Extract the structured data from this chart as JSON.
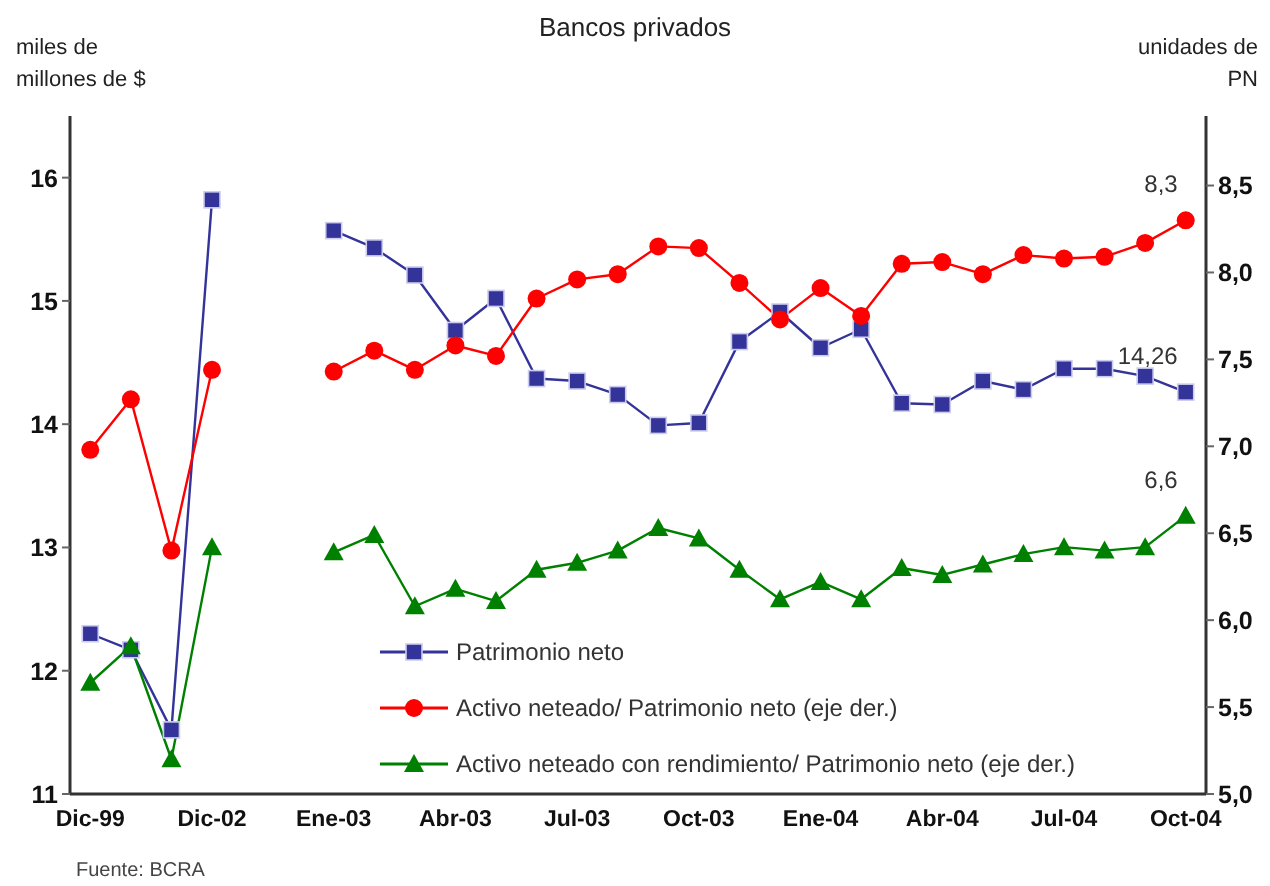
{
  "chart_data": {
    "type": "line",
    "title": "Bancos privados",
    "ylabel": "miles de millones de $",
    "y2label": "unidades de PN",
    "categories": [
      "Dic-99",
      null,
      null,
      "Dic-02",
      null,
      null,
      "Ene-03",
      null,
      null,
      "Abr-03",
      null,
      null,
      "Jul-03",
      null,
      null,
      "Oct-03",
      null,
      null,
      "Ene-04",
      null,
      null,
      "Abr-04",
      null,
      null,
      "Jul-04",
      null,
      null,
      "Oct-04"
    ],
    "series": [
      {
        "name": "Patrimonio neto",
        "color": "#333399",
        "marker": "square",
        "values": [
          12.3,
          12.17,
          11.52,
          15.82,
          null,
          null,
          15.57,
          15.43,
          15.21,
          14.76,
          15.02,
          14.37,
          14.35,
          14.24,
          13.99,
          14.01,
          14.67,
          14.91,
          14.62,
          14.77,
          14.17,
          14.16,
          14.35,
          14.28,
          14.45,
          14.45,
          14.39,
          14.26
        ],
        "value_labels": [
          null,
          null,
          null,
          null,
          null,
          null,
          null,
          null,
          null,
          null,
          null,
          null,
          null,
          null,
          null,
          null,
          null,
          null,
          null,
          null,
          null,
          null,
          null,
          null,
          null,
          null,
          null,
          "14,26"
        ]
      },
      {
        "name": "Activo neteado/ Patrimonio neto (eje der.)",
        "color": "#ff0000",
        "marker": "circle",
        "axis": "y2",
        "values": [
          6.98,
          7.27,
          6.4,
          7.44,
          null,
          null,
          7.43,
          7.55,
          7.44,
          7.58,
          7.52,
          7.85,
          7.96,
          7.99,
          8.15,
          8.14,
          7.94,
          7.73,
          7.91,
          7.75,
          8.05,
          8.06,
          7.99,
          8.1,
          8.08,
          8.09,
          8.17,
          8.3
        ],
        "value_labels": [
          null,
          null,
          null,
          null,
          null,
          null,
          null,
          null,
          null,
          null,
          null,
          null,
          null,
          null,
          null,
          null,
          null,
          null,
          null,
          null,
          null,
          null,
          null,
          null,
          null,
          null,
          null,
          "8,3"
        ]
      },
      {
        "name": "Activo neteado con rendimiento/ Patrimonio neto (eje der.)",
        "color": "#008000",
        "marker": "triangle",
        "axis": "y2",
        "values": [
          5.64,
          5.85,
          5.2,
          6.42,
          null,
          null,
          6.39,
          6.49,
          6.08,
          6.18,
          6.11,
          6.29,
          6.33,
          6.4,
          6.53,
          6.47,
          6.29,
          6.12,
          6.22,
          6.12,
          6.3,
          6.26,
          6.32,
          6.38,
          6.42,
          6.4,
          6.42,
          6.6
        ],
        "value_labels": [
          null,
          null,
          null,
          null,
          null,
          null,
          null,
          null,
          null,
          null,
          null,
          null,
          null,
          null,
          null,
          null,
          null,
          null,
          null,
          null,
          null,
          null,
          null,
          null,
          null,
          null,
          null,
          "6,6"
        ]
      }
    ],
    "ylim": [
      11,
      16.5
    ],
    "yticks": [
      11,
      12,
      13,
      14,
      15,
      16
    ],
    "y2lim": [
      5,
      8.9
    ],
    "y2ticks": [
      {
        "value": 5,
        "label": "5,0"
      },
      {
        "value": 5.5,
        "label": "5,5"
      },
      {
        "value": 6,
        "label": "6,0"
      },
      {
        "value": 6.5,
        "label": "6,5"
      },
      {
        "value": 7,
        "label": "7,0"
      },
      {
        "value": 7.5,
        "label": "7,5"
      },
      {
        "value": 8,
        "label": "8,0"
      },
      {
        "value": 8.5,
        "label": "8,5"
      }
    ],
    "grid": false,
    "legend": "bottom",
    "line_style": "solid",
    "annotations": [
      "Fuente: BCRA"
    ]
  }
}
